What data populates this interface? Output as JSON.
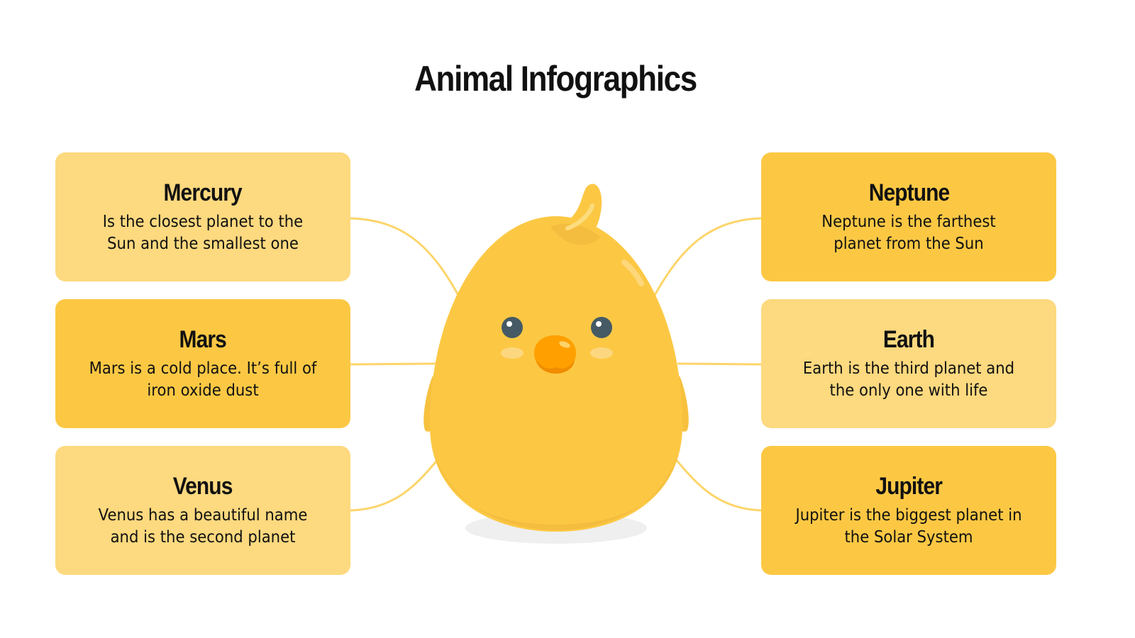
{
  "title": "Animal Infographics",
  "colors": {
    "light_box": "#FDD97F",
    "dark_box": "#FCC844",
    "chick": "#FCC844",
    "beak": "#FFA000",
    "eye": "#455A64"
  },
  "illustration": "chick",
  "left": [
    {
      "title": "Mercury",
      "text": "Is the closest planet to the Sun and the smallest one"
    },
    {
      "title": "Mars",
      "text": "Mars is a cold place. It’s full of iron oxide dust"
    },
    {
      "title": "Venus",
      "text": "Venus has a beautiful name and is the second planet"
    }
  ],
  "right": [
    {
      "title": "Neptune",
      "text": "Neptune is the farthest planet from the Sun"
    },
    {
      "title": "Earth",
      "text": "Earth is the third planet and the only one with life"
    },
    {
      "title": "Jupiter",
      "text": "Jupiter is the biggest planet in the Solar System"
    }
  ]
}
